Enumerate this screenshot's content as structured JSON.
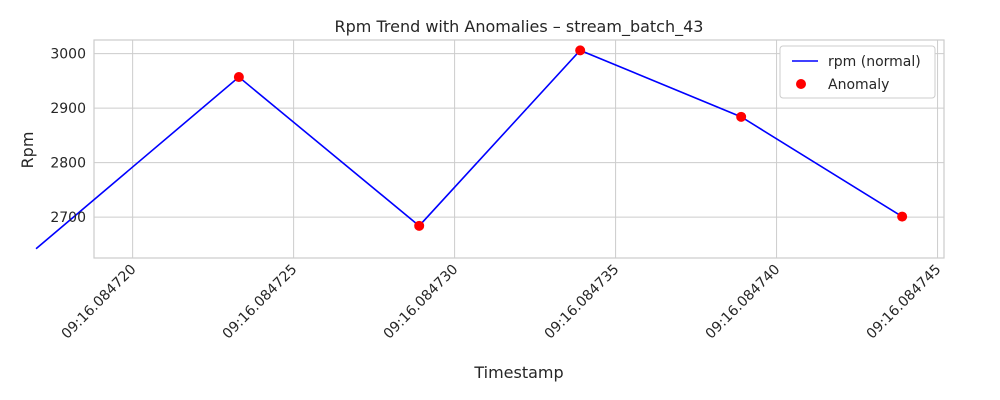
{
  "chart_data": {
    "type": "line",
    "title": "Rpm Trend with Anomalies – stream_batch_43",
    "xlabel": "Timestamp",
    "ylabel": "Rpm",
    "x_tick_labels": [
      "09:16.084720",
      "09:16.084725",
      "09:16.084730",
      "09:16.084735",
      "09:16.084740",
      "09:16.084745"
    ],
    "x_tick_values": [
      84720,
      84725,
      84730,
      84735,
      84740,
      84745
    ],
    "y_ticks": [
      2700,
      2800,
      2900,
      3000
    ],
    "xlim": [
      84718.8,
      84745.2
    ],
    "ylim": [
      2625,
      3025
    ],
    "grid": true,
    "legend_position": "top-right",
    "series": [
      {
        "name": "rpm (normal)",
        "kind": "line",
        "color": "#0000ff",
        "x": [
          84717.0,
          84723.3,
          84728.9,
          84733.9,
          84738.9,
          84743.9
        ],
        "values": [
          2642,
          2957,
          2684,
          3006,
          2884,
          2701
        ]
      },
      {
        "name": "Anomaly",
        "kind": "scatter",
        "color": "#ff0000",
        "x": [
          84723.3,
          84728.9,
          84733.9,
          84738.9,
          84743.9
        ],
        "values": [
          2957,
          2684,
          3006,
          2884,
          2701
        ]
      }
    ]
  }
}
